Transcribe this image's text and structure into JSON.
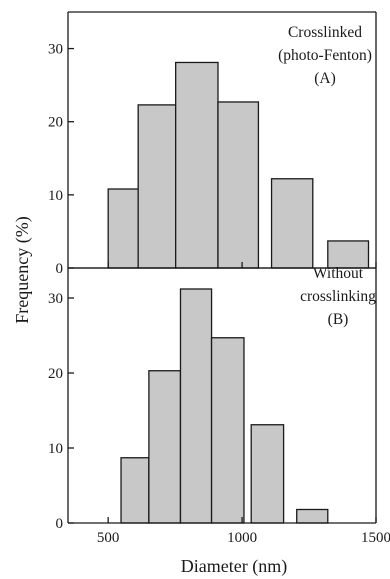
{
  "chart_data": {
    "type": "bar",
    "xlabel": "Diameter (nm)",
    "ylabel": "Frequency (%)",
    "xlim": [
      350,
      1500
    ],
    "x_ticks": [
      500,
      1000,
      1500
    ],
    "x_tick_labels": [
      "500",
      "1000",
      "1500"
    ],
    "panels": [
      {
        "id": "A",
        "annotation": [
          "Crosslinked",
          "(photo-Fenton)",
          "(A)"
        ],
        "ylim": [
          0,
          35
        ],
        "y_ticks": [
          0,
          10,
          20,
          30
        ],
        "y_tick_labels": [
          "0",
          "10",
          "20",
          "30"
        ],
        "bins": [
          {
            "x0": 500,
            "x1": 612,
            "value": 10.8
          },
          {
            "x0": 612,
            "x1": 752,
            "value": 22.3
          },
          {
            "x0": 752,
            "x1": 910,
            "value": 28.1
          },
          {
            "x0": 910,
            "x1": 1061,
            "value": 22.7
          },
          {
            "x0": 1110,
            "x1": 1264,
            "value": 12.2
          },
          {
            "x0": 1320,
            "x1": 1472,
            "value": 3.7
          }
        ]
      },
      {
        "id": "B",
        "annotation": [
          "Without",
          "crosslinking",
          "(B)"
        ],
        "ylim": [
          0,
          34
        ],
        "y_ticks": [
          0,
          10,
          20,
          30
        ],
        "y_tick_labels": [
          "0",
          "10",
          "20",
          "30"
        ],
        "bins": [
          {
            "x0": 548,
            "x1": 652,
            "value": 8.7
          },
          {
            "x0": 652,
            "x1": 770,
            "value": 20.3
          },
          {
            "x0": 770,
            "x1": 886,
            "value": 31.2
          },
          {
            "x0": 886,
            "x1": 1007,
            "value": 24.7
          },
          {
            "x0": 1034,
            "x1": 1155,
            "value": 13.1
          },
          {
            "x0": 1204,
            "x1": 1320,
            "value": 1.8
          }
        ]
      }
    ]
  }
}
